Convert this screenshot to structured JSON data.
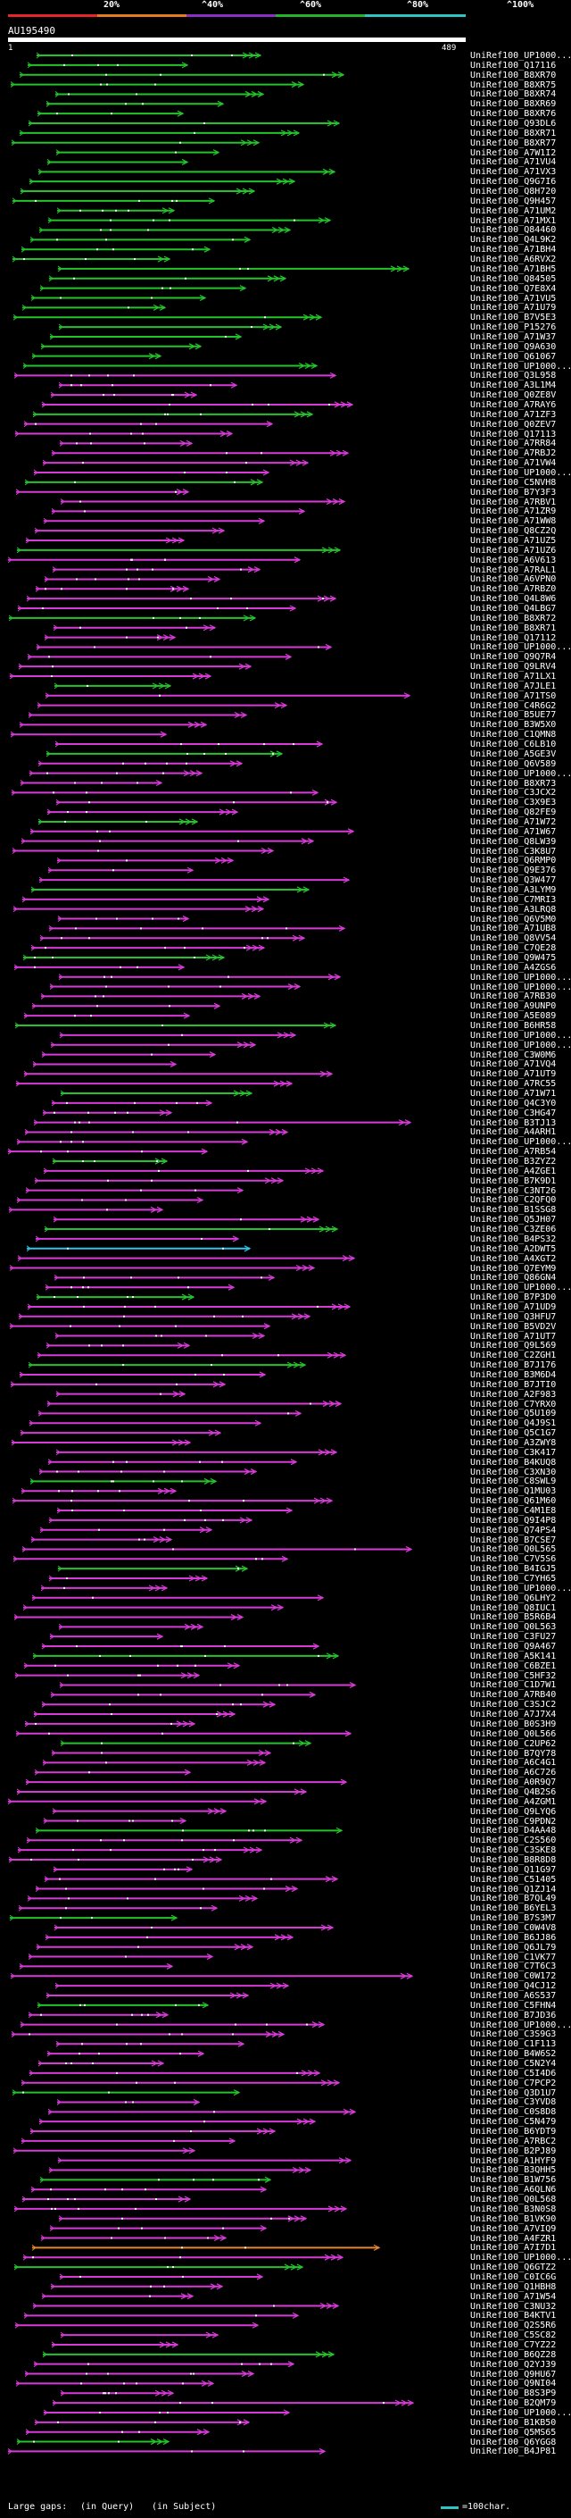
{
  "legend": {
    "items": [
      {
        "label": "20%",
        "color": "#e8242c"
      },
      {
        "label": "^40%",
        "color": "#e87a1e"
      },
      {
        "label": "^60%",
        "color": "#8a2ec4"
      },
      {
        "label": "^80%",
        "color": "#22b42a"
      },
      {
        "label": "^100%",
        "color": "#2ec4c4"
      }
    ]
  },
  "query": {
    "name": "AU195490",
    "start": "1",
    "end": "489"
  },
  "hit_colors": {
    "green": "#22c42a",
    "magenta": "#d83ad8",
    "cyan": "#2ec4e8",
    "orange": "#e8862c",
    "red": "#e82c2c"
  },
  "hits": [
    "UniRef100_UP1000...",
    "UniRef100_Q17116",
    "UniRef100_B8XR70",
    "UniRef100_B8XR75",
    "UniRef100_B8XR74",
    "UniRef100_B8XR69",
    "UniRef100_B8XR76",
    "UniRef100_Q93DL6",
    "UniRef100_B8XR71",
    "UniRef100_B8XR77",
    "UniRef100_A7W1I2",
    "UniRef100_A71VU4",
    "UniRef100_A71VX3",
    "UniRef100_Q9G7I6",
    "UniRef100_Q8H720",
    "UniRef100_Q9H457",
    "UniRef100_A71UM2",
    "UniRef100_A71MX1",
    "UniRef100_Q84460",
    "UniRef100_Q4L9K2",
    "UniRef100_A71BH4",
    "UniRef100_A6RVX2",
    "UniRef100_A71BH5",
    "UniRef100_Q84505",
    "UniRef100_Q7E8X4",
    "UniRef100_A71VU5",
    "UniRef100_A71U79",
    "UniRef100_B7V5E3",
    "UniRef100_P15276",
    "UniRef100_A71W37",
    "UniRef100_Q9A630",
    "UniRef100_Q61067",
    "UniRef100_UP1000...",
    "UniRef100_Q3L958",
    "UniRef100_A3L1M4",
    "UniRef100_Q0ZE8V",
    "UniRef100_A7RAY6",
    "UniRef100_A71ZF3",
    "UniRef100_Q0ZEV7",
    "UniRef100_Q17113",
    "UniRef100_A7RR84",
    "UniRef100_A7RBJ2",
    "UniRef100_A71VW4",
    "UniRef100_UP1000...",
    "UniRef100_C5NVH8",
    "UniRef100_B7Y3F3",
    "UniRef100_A7RBV1",
    "UniRef100_A71ZR9",
    "UniRef100_A71WW8",
    "UniRef100_Q8CZ2Q",
    "UniRef100_A71UZ5",
    "UniRef100_A71UZ6",
    "UniRef100_A6V613",
    "UniRef100_A7RAL1",
    "UniRef100_A6VPN0",
    "UniRef100_A7RBZ0",
    "UniRef100_Q4L8W6",
    "UniRef100_Q4LBG7",
    "UniRef100_B8XR72",
    "UniRef100_B8XR71",
    "UniRef100_Q17112",
    "UniRef100_UP1000...",
    "UniRef100_Q9Q7R4",
    "UniRef100_Q9LRV4",
    "UniRef100_A71LX1",
    "UniRef100_A7JLE1",
    "UniRef100_A71TS0",
    "UniRef100_C4R6G2",
    "UniRef100_B5UE77",
    "UniRef100_B3W5X0",
    "UniRef100_C1QMN8",
    "UniRef100_C6LB10",
    "UniRef100_A5GE3V",
    "UniRef100_Q6V589",
    "UniRef100_UP1000...",
    "UniRef100_B8XR73",
    "UniRef100_C3JCX2",
    "UniRef100_C3X9E3",
    "UniRef100_Q82FE9",
    "UniRef100_A71W72",
    "UniRef100_A71W67",
    "UniRef100_Q8LW39",
    "UniRef100_C3K8U7",
    "UniRef100_Q6RMP0",
    "UniRef100_Q9E376",
    "UniRef100_Q3W477",
    "UniRef100_A3LYM9",
    "UniRef100_C7MRI3",
    "UniRef100_A3LRQ8",
    "UniRef100_Q6V5M0",
    "UniRef100_A71UB8",
    "UniRef100_Q8VV54",
    "UniRef100_C7QE28",
    "UniRef100_Q9W475",
    "UniRef100_A4ZGS6",
    "UniRef100_UP1000...",
    "UniRef100_UP1000...",
    "UniRef100_A7RB30",
    "UniRef100_A9UNP0",
    "UniRef100_A5E089",
    "UniRef100_B6HR58",
    "UniRef100_UP1000...",
    "UniRef100_UP1000...",
    "UniRef100_C3W0M6",
    "UniRef100_A71VQ4",
    "UniRef100_A71UT9",
    "UniRef100_A7RC55",
    "UniRef100_A71W71",
    "UniRef100_Q4C3Y0",
    "UniRef100_C3HG47",
    "UniRef100_B3TJ13",
    "UniRef100_A4ARH1",
    "UniRef100_UP1000...",
    "UniRef100_A7RB54",
    "UniRef100_B3ZYZ2",
    "UniRef100_A4ZGE1",
    "UniRef100_B7K9D1",
    "UniRef100_C3NT26",
    "UniRef100_C2QFQ0",
    "UniRef100_B1SSG8",
    "UniRef100_Q5JH07",
    "UniRef100_C3ZE06",
    "UniRef100_B4PS32",
    "UniRef100_A2DWT5",
    "UniRef100_A4XGT2",
    "UniRef100_Q7EYM9",
    "UniRef100_Q86GN4",
    "UniRef100_UP1000...",
    "UniRef100_B7P3D0",
    "UniRef100_A71UD9",
    "UniRef100_Q3HFU7",
    "UniRef100_B5VD2V",
    "UniRef100_A71UT7",
    "UniRef100_Q9L569",
    "UniRef100_C2ZGH1",
    "UniRef100_B7J176",
    "UniRef100_B3M6D4",
    "UniRef100_B7JTI0",
    "UniRef100_A2F983",
    "UniRef100_C7YRX0",
    "UniRef100_Q5U109",
    "UniRef100_Q4J9S1",
    "UniRef100_Q5C1G7",
    "UniRef100_A3ZWY8",
    "UniRef100_C3K417",
    "UniRef100_B4KUQ8",
    "UniRef100_C3XN30",
    "UniRef100_C8SWL9",
    "UniRef100_Q1MU03",
    "UniRef100_Q61M60",
    "UniRef100_C4M1E8",
    "UniRef100_Q9I4P8",
    "UniRef100_Q74PS4",
    "UniRef100_B7CSE7",
    "UniRef100_Q0L565",
    "UniRef100_C7V5S6",
    "UniRef100_B4IGJ5",
    "UniRef100_C7YH65",
    "UniRef100_UP1000...",
    "UniRef100_Q6LHY2",
    "UniRef100_Q8IUC1",
    "UniRef100_B5R6B4",
    "UniRef100_Q0L563",
    "UniRef100_C3FU27",
    "UniRef100_Q9A467",
    "UniRef100_A5K141",
    "UniRef100_C6BZE1",
    "UniRef100_C5HF32",
    "UniRef100_C1D7W1",
    "UniRef100_A7RB40",
    "UniRef100_C3SJC2",
    "UniRef100_A7J7X4",
    "UniRef100_B0S3H9",
    "UniRef100_Q0L566",
    "UniRef100_C2UP62",
    "UniRef100_B7QY78",
    "UniRef100_A6C4G1",
    "UniRef100_A6C726",
    "UniRef100_A0R9Q7",
    "UniRef100_Q4B2S6",
    "UniRef100_A4ZGM1",
    "UniRef100_Q9LYQ6",
    "UniRef100_C9PDN2",
    "UniRef100_D4AA48",
    "UniRef100_C2S560",
    "UniRef100_C3SKE8",
    "UniRef100_B8R8D8",
    "UniRef100_Q11G97",
    "UniRef100_C51405",
    "UniRef100_Q1ZJ14",
    "UniRef100_B7QL49",
    "UniRef100_B6YEL3",
    "UniRef100_B7S3M7",
    "UniRef100_C0W4V8",
    "UniRef100_B6JJ86",
    "UniRef100_Q6JL79",
    "UniRef100_C1VK77",
    "UniRef100_C7T6C3",
    "UniRef100_C0W172",
    "UniRef100_Q4CJ12",
    "UniRef100_A6S537",
    "UniRef100_C5FHN4",
    "UniRef100_B7JD36",
    "UniRef100_UP1000...",
    "UniRef100_C3S9G3",
    "UniRef100_C1F113",
    "UniRef100_B4W6S2",
    "UniRef100_C5N2Y4",
    "UniRef100_C5I4D6",
    "UniRef100_C7PCP2",
    "UniRef100_Q3D1U7",
    "UniRef100_C3YVD8",
    "UniRef100_C0S8D8",
    "UniRef100_C5N479",
    "UniRef100_B6YDT9",
    "UniRef100_A7RBC2",
    "UniRef100_B2PJ89",
    "UniRef100_A1HYF9",
    "UniRef100_B3QHH5",
    "UniRef100_B1W756",
    "UniRef100_A6QLN6",
    "UniRef100_Q0L568",
    "UniRef100_B3N0S8",
    "UniRef100_B1VK90",
    "UniRef100_A7VIQ9",
    "UniRef100_A4FZR1",
    "UniRef100_A7I7D1",
    "UniRef100_UP1000...",
    "UniRef100_Q6GTZ2",
    "UniRef100_C0IC6G",
    "UniRef100_Q1HBH8",
    "UniRef100_A71W54",
    "UniRef100_C3NU32",
    "UniRef100_B4KTV1",
    "UniRef100_Q2S5R6",
    "UniRef100_C5SC82",
    "UniRef100_C7YZ22",
    "UniRef100_B6QZ28",
    "UniRef100_Q2YJ39",
    "UniRef100_Q9HU67",
    "UniRef100_Q9NI04",
    "UniRef100_B8S3P9",
    "UniRef100_B2QM79",
    "UniRef100_UP1000...",
    "UniRef100_B1KB50",
    "UniRef100_Q5MS65",
    "UniRef100_Q6YGG8",
    "UniRef100_B4JP81"
  ],
  "footer": {
    "large_gaps": "Large gaps:",
    "in_query": "(in Query)",
    "in_subject": "(in Subject)",
    "scale": "=100char."
  }
}
